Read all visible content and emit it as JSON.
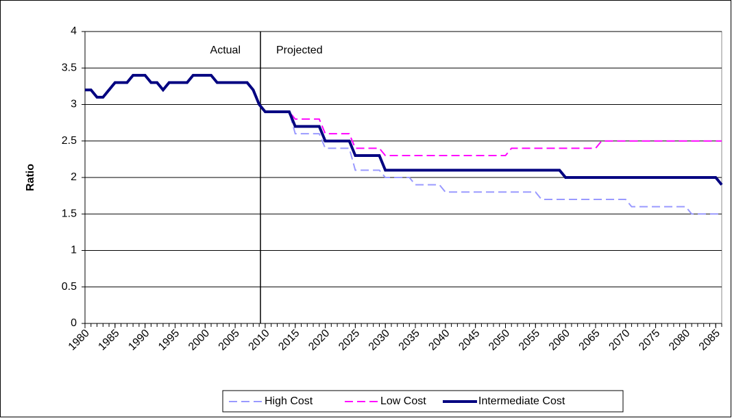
{
  "chart_data": {
    "type": "line",
    "y_label": "Ratio",
    "annotations": [
      "Actual",
      "Projected"
    ],
    "x": [
      1980,
      1981,
      1982,
      1983,
      1984,
      1985,
      1986,
      1987,
      1988,
      1989,
      1990,
      1991,
      1992,
      1993,
      1994,
      1995,
      1996,
      1997,
      1998,
      1999,
      2000,
      2001,
      2002,
      2003,
      2004,
      2005,
      2006,
      2007,
      2008,
      2009,
      2010,
      2011,
      2012,
      2013,
      2014,
      2015,
      2016,
      2017,
      2018,
      2019,
      2020,
      2021,
      2022,
      2023,
      2024,
      2025,
      2026,
      2027,
      2028,
      2029,
      2030,
      2031,
      2032,
      2033,
      2034,
      2035,
      2036,
      2037,
      2038,
      2039,
      2040,
      2041,
      2042,
      2043,
      2044,
      2045,
      2046,
      2047,
      2048,
      2049,
      2050,
      2051,
      2052,
      2053,
      2054,
      2055,
      2056,
      2057,
      2058,
      2059,
      2060,
      2061,
      2062,
      2063,
      2064,
      2065,
      2066,
      2067,
      2068,
      2069,
      2070,
      2071,
      2072,
      2073,
      2074,
      2075,
      2076,
      2077,
      2078,
      2079,
      2080,
      2081,
      2082,
      2083,
      2084,
      2085,
      2086
    ],
    "xlim": [
      1980,
      2086
    ],
    "xticks": [
      1980,
      1985,
      1990,
      1995,
      2000,
      2005,
      2010,
      2015,
      2020,
      2025,
      2030,
      2035,
      2040,
      2045,
      2050,
      2055,
      2060,
      2065,
      2070,
      2075,
      2080,
      2085
    ],
    "ylim": [
      0,
      4
    ],
    "yticks": [
      0,
      0.5,
      1,
      1.5,
      2,
      2.5,
      3,
      3.5,
      4
    ],
    "grid": true,
    "legend": "bottom",
    "series": [
      {
        "name": "High Cost",
        "color": "#9999ff",
        "line_style": "dashed",
        "line_width": 2,
        "values": [
          null,
          null,
          null,
          null,
          null,
          null,
          null,
          null,
          null,
          null,
          null,
          null,
          null,
          null,
          null,
          null,
          null,
          null,
          null,
          null,
          null,
          null,
          null,
          null,
          null,
          null,
          null,
          null,
          null,
          3.0,
          2.9,
          2.9,
          2.9,
          2.9,
          2.9,
          2.6,
          2.6,
          2.6,
          2.6,
          2.6,
          2.4,
          2.4,
          2.4,
          2.4,
          2.4,
          2.1,
          2.1,
          2.1,
          2.1,
          2.1,
          2.0,
          2.0,
          2.0,
          2.0,
          2.0,
          1.9,
          1.9,
          1.9,
          1.9,
          1.9,
          1.8,
          1.8,
          1.8,
          1.8,
          1.8,
          1.8,
          1.8,
          1.8,
          1.8,
          1.8,
          1.8,
          1.8,
          1.8,
          1.8,
          1.8,
          1.8,
          1.7,
          1.7,
          1.7,
          1.7,
          1.7,
          1.7,
          1.7,
          1.7,
          1.7,
          1.7,
          1.7,
          1.7,
          1.7,
          1.7,
          1.7,
          1.6,
          1.6,
          1.6,
          1.6,
          1.6,
          1.6,
          1.6,
          1.6,
          1.6,
          1.6,
          1.5,
          1.5,
          1.5,
          1.5,
          1.5,
          1.5
        ]
      },
      {
        "name": "Low Cost",
        "color": "#ff00ff",
        "line_style": "dashed",
        "line_width": 2,
        "values": [
          null,
          null,
          null,
          null,
          null,
          null,
          null,
          null,
          null,
          null,
          null,
          null,
          null,
          null,
          null,
          null,
          null,
          null,
          null,
          null,
          null,
          null,
          null,
          null,
          null,
          null,
          null,
          null,
          null,
          3.0,
          2.9,
          2.9,
          2.9,
          2.9,
          2.9,
          2.8,
          2.8,
          2.8,
          2.8,
          2.8,
          2.6,
          2.6,
          2.6,
          2.6,
          2.6,
          2.4,
          2.4,
          2.4,
          2.4,
          2.4,
          2.3,
          2.3,
          2.3,
          2.3,
          2.3,
          2.3,
          2.3,
          2.3,
          2.3,
          2.3,
          2.3,
          2.3,
          2.3,
          2.3,
          2.3,
          2.3,
          2.3,
          2.3,
          2.3,
          2.3,
          2.3,
          2.4,
          2.4,
          2.4,
          2.4,
          2.4,
          2.4,
          2.4,
          2.4,
          2.4,
          2.4,
          2.4,
          2.4,
          2.4,
          2.4,
          2.4,
          2.5,
          2.5,
          2.5,
          2.5,
          2.5,
          2.5,
          2.5,
          2.5,
          2.5,
          2.5,
          2.5,
          2.5,
          2.5,
          2.5,
          2.5,
          2.5,
          2.5,
          2.5,
          2.5,
          2.5,
          2.5
        ]
      },
      {
        "name": "Intermediate Cost",
        "color": "#000080",
        "line_style": "solid",
        "line_width": 4,
        "values": [
          3.2,
          3.2,
          3.1,
          3.1,
          3.2,
          3.3,
          3.3,
          3.3,
          3.4,
          3.4,
          3.4,
          3.3,
          3.3,
          3.2,
          3.3,
          3.3,
          3.3,
          3.3,
          3.4,
          3.4,
          3.4,
          3.4,
          3.3,
          3.3,
          3.3,
          3.3,
          3.3,
          3.3,
          3.2,
          3.0,
          2.9,
          2.9,
          2.9,
          2.9,
          2.9,
          2.7,
          2.7,
          2.7,
          2.7,
          2.7,
          2.5,
          2.5,
          2.5,
          2.5,
          2.5,
          2.3,
          2.3,
          2.3,
          2.3,
          2.3,
          2.1,
          2.1,
          2.1,
          2.1,
          2.1,
          2.1,
          2.1,
          2.1,
          2.1,
          2.1,
          2.1,
          2.1,
          2.1,
          2.1,
          2.1,
          2.1,
          2.1,
          2.1,
          2.1,
          2.1,
          2.1,
          2.1,
          2.1,
          2.1,
          2.1,
          2.1,
          2.1,
          2.1,
          2.1,
          2.1,
          2.0,
          2.0,
          2.0,
          2.0,
          2.0,
          2.0,
          2.0,
          2.0,
          2.0,
          2.0,
          2.0,
          2.0,
          2.0,
          2.0,
          2.0,
          2.0,
          2.0,
          2.0,
          2.0,
          2.0,
          2.0,
          2.0,
          2.0,
          2.0,
          2.0,
          2.0,
          1.9
        ]
      }
    ]
  }
}
